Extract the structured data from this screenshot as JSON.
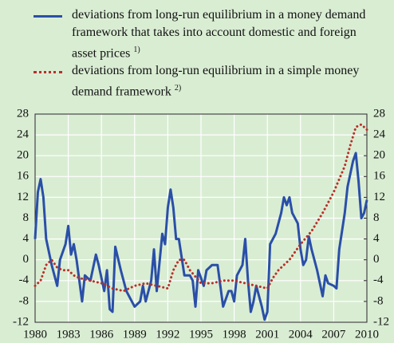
{
  "chart_data": {
    "type": "line",
    "series": [
      {
        "name": "deviations from long-run equilibrium in a money demand framework that takes into account domestic and foreign asset prices",
        "note": "1)",
        "color": "#2a4fa8",
        "style": "solid",
        "x": [
          1980.0,
          1980.25,
          1980.5,
          1980.75,
          1981.0,
          1981.5,
          1982.0,
          1982.25,
          1982.75,
          1983.0,
          1983.25,
          1983.5,
          1983.75,
          1984.25,
          1984.5,
          1985.0,
          1985.5,
          1985.75,
          1986.25,
          1986.5,
          1986.75,
          1987.0,
          1987.25,
          1987.75,
          1988.25,
          1988.75,
          1989.0,
          1989.5,
          1989.75,
          1990.0,
          1990.5,
          1990.75,
          1991.0,
          1991.5,
          1991.75,
          1992.0,
          1992.25,
          1992.5,
          1992.75,
          1993.0,
          1993.5,
          1994.0,
          1994.25,
          1994.5,
          1994.75,
          1995.25,
          1995.5,
          1996.0,
          1996.5,
          1997.0,
          1997.5,
          1997.75,
          1998.0,
          1998.25,
          1998.75,
          1999.0,
          1999.25,
          1999.5,
          1999.75,
          2000.0,
          2000.5,
          2000.75,
          2001.0,
          2001.25,
          2001.75,
          2002.25,
          2002.5,
          2002.75,
          2003.0,
          2003.25,
          2003.75,
          2004.0,
          2004.25,
          2004.5,
          2004.75,
          2005.0,
          2005.5,
          2006.0,
          2006.25,
          2006.5,
          2007.0,
          2007.25,
          2007.5,
          2008.0,
          2008.25,
          2008.75,
          2009.0,
          2009.25,
          2009.5,
          2009.75,
          2010.0
        ],
        "values": [
          4,
          13,
          15.5,
          12,
          4,
          -1,
          -5,
          0,
          3,
          6.5,
          1,
          3,
          0,
          -8,
          -3,
          -4,
          1,
          -1,
          -6,
          -2,
          -9.5,
          -10,
          2.5,
          -2,
          -6,
          -8,
          -9,
          -8,
          -5,
          -8,
          -4,
          2,
          -6,
          5,
          3,
          10,
          13.5,
          10,
          4,
          4,
          -3,
          -3,
          -4,
          -9,
          -2,
          -5,
          -2,
          -1,
          -1,
          -9,
          -6,
          -6,
          -8,
          -3,
          -1,
          4,
          -4,
          -10,
          -8,
          -5,
          -9,
          -11.5,
          -10,
          3,
          5,
          9,
          12,
          10.5,
          12,
          9,
          7,
          2,
          -1,
          0,
          4.5,
          2,
          -2,
          -7,
          -3,
          -4.5,
          -5,
          -5.5,
          2,
          9,
          14,
          19,
          20.5,
          15,
          8,
          9,
          11.5
        ]
      },
      {
        "name": "deviations from long-run equilibrium in a simple money demand framework",
        "note": "2)",
        "color": "#b8302a",
        "style": "dotted",
        "x": [
          1980,
          1980.5,
          1981,
          1981.5,
          1982,
          1982.5,
          1983,
          1983.5,
          1984,
          1985,
          1986,
          1987,
          1988,
          1989,
          1990,
          1991,
          1992,
          1992.5,
          1993,
          1993.5,
          1994,
          1995,
          1996,
          1997,
          1998,
          1999,
          2000,
          2001,
          2001.5,
          2002,
          2003,
          2004,
          2005,
          2006,
          2007,
          2008,
          2008.5,
          2009,
          2009.5,
          2010
        ],
        "values": [
          -5,
          -4,
          -1,
          0,
          -1.5,
          -2,
          -2,
          -3,
          -3.5,
          -4,
          -4.5,
          -5.5,
          -6,
          -5,
          -4.5,
          -5,
          -5.5,
          -2,
          0,
          0,
          -2,
          -4.5,
          -4.5,
          -4,
          -4,
          -4.5,
          -5,
          -5.5,
          -3.5,
          -2,
          0,
          3,
          5.5,
          9,
          13,
          18,
          22,
          25.5,
          26,
          25
        ]
      }
    ],
    "xlim": [
      1980,
      2010
    ],
    "xticks": [
      1980,
      1983,
      1986,
      1989,
      1992,
      1995,
      1998,
      2001,
      2004,
      2007,
      2010
    ],
    "ylim": [
      -12,
      28
    ],
    "yticks": [
      -12,
      -8,
      -4,
      0,
      4,
      8,
      12,
      16,
      20,
      24,
      28
    ],
    "y2lim": [
      -12,
      28
    ],
    "y2ticks": [
      -12,
      -8,
      -4,
      0,
      4,
      8,
      12,
      16,
      20,
      24,
      28
    ],
    "grid": true
  }
}
